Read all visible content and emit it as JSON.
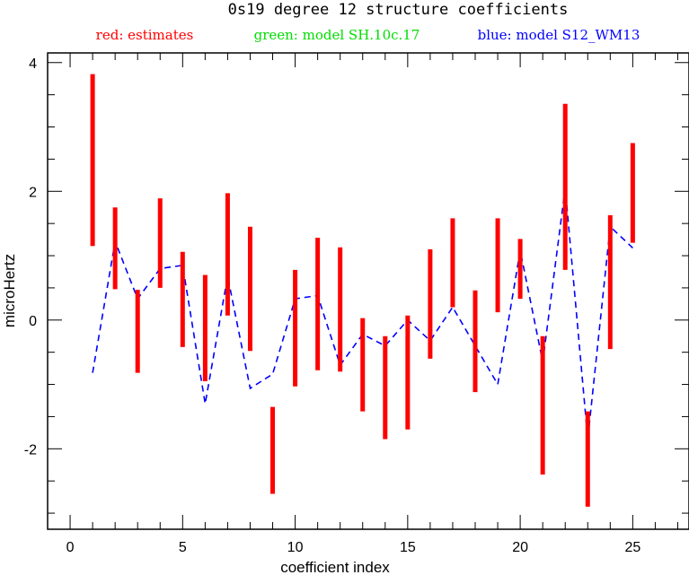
{
  "chart_data": {
    "type": "line",
    "title": "0s19 degree 12 structure coefficients",
    "legend": {
      "placement": "top",
      "entries": [
        {
          "label": "red: estimates",
          "color": "#ff0000"
        },
        {
          "label": "green: model SH.10c.17",
          "color": "#00dd00"
        },
        {
          "label": "blue: model S12_WM13",
          "color": "#0000ff"
        }
      ]
    },
    "xlabel": "coefficient index",
    "ylabel": "microHertz",
    "xlim": [
      -1,
      27.5
    ],
    "ylim": [
      -3.25,
      4.15
    ],
    "x_ticks": [
      0,
      5,
      10,
      15,
      20,
      25
    ],
    "y_ticks": [
      -2,
      0,
      2,
      4
    ],
    "x_minor_step": 1,
    "y_minor_step": 0.5,
    "grid": false,
    "series": [
      {
        "name": "estimates",
        "kind": "errorbar",
        "color": "#ff0000",
        "x": [
          1,
          2,
          3,
          4,
          5,
          6,
          7,
          8,
          9,
          10,
          11,
          12,
          13,
          14,
          15,
          16,
          17,
          18,
          19,
          20,
          21,
          22,
          23,
          24,
          25
        ],
        "low": [
          1.15,
          0.48,
          -0.82,
          0.5,
          -0.42,
          -0.95,
          0.07,
          -0.48,
          -2.7,
          -1.03,
          -0.78,
          -0.8,
          -1.42,
          -1.85,
          -1.7,
          -0.6,
          0.2,
          -1.12,
          0.12,
          0.33,
          -2.4,
          0.78,
          -2.9,
          -0.45,
          1.2
        ],
        "high": [
          3.82,
          1.75,
          0.47,
          1.89,
          1.06,
          0.7,
          1.97,
          1.45,
          -1.35,
          0.78,
          1.28,
          1.13,
          0.03,
          -0.25,
          0.07,
          1.1,
          1.58,
          0.46,
          1.58,
          1.26,
          -0.25,
          3.36,
          -1.42,
          1.63,
          2.75
        ]
      },
      {
        "name": "model S12_WM13",
        "kind": "line",
        "style": "dashed",
        "color": "#0000ff",
        "x": [
          1,
          2,
          3,
          4,
          5,
          6,
          7,
          8,
          9,
          10,
          11,
          12,
          13,
          14,
          15,
          16,
          17,
          18,
          19,
          20,
          21,
          22,
          23,
          24,
          25
        ],
        "y": [
          -0.82,
          1.22,
          0.33,
          0.8,
          0.85,
          -1.3,
          0.68,
          -1.06,
          -0.84,
          0.33,
          0.38,
          -0.7,
          -0.22,
          -0.4,
          0.0,
          -0.32,
          0.2,
          -0.4,
          -1.0,
          1.08,
          -0.65,
          2.05,
          -1.85,
          1.45,
          1.12
        ]
      }
    ]
  }
}
